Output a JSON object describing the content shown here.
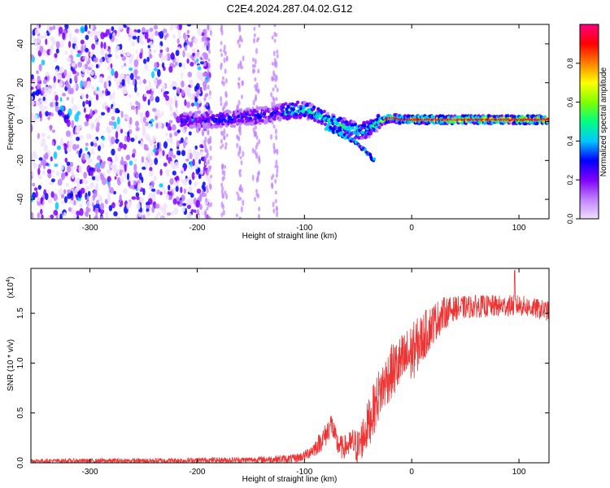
{
  "title": "C2E4.2024.287.04.02.G12",
  "chart_data": [
    {
      "type": "heatmap",
      "name": "spectrogram",
      "xlabel": "Height of straight line (km)",
      "ylabel": "Frequency (Hz)",
      "xlim": [
        -355,
        128
      ],
      "ylim": [
        -50,
        50
      ],
      "xticks": [
        -300,
        -200,
        -100,
        0,
        100
      ],
      "yticks": [
        -40,
        -20,
        0,
        20,
        40
      ],
      "colorbar": {
        "label": "Normalized spectral amplitude",
        "range": [
          0,
          1
        ],
        "ticks": [
          0.0,
          0.2,
          0.4,
          0.6,
          0.8
        ],
        "tick_labels": [
          "0.0",
          "0.2",
          "0.4",
          "0.6",
          "0.8"
        ],
        "colors": [
          "#f0e0ff",
          "#c080ff",
          "#8000ff",
          "#0000ff",
          "#00c8ff",
          "#00ff80",
          "#80ff00",
          "#ffff00",
          "#ff8000",
          "#ff0000",
          "#ff0080"
        ]
      },
      "center_frequency_track": {
        "x": [
          -215,
          -200,
          -180,
          -160,
          -140,
          -120,
          -110,
          -100,
          -90,
          -80,
          -70,
          -60,
          -50,
          -40,
          -30,
          -20,
          -10,
          0,
          20,
          60,
          100,
          128
        ],
        "y": [
          0,
          1,
          1,
          2,
          3,
          5,
          6,
          6,
          4,
          1,
          -1,
          -3,
          -5,
          -4,
          0,
          2,
          1,
          1,
          1,
          1,
          1,
          1
        ]
      },
      "noise_region_x": [
        -355,
        -200
      ],
      "noise_streaks_x": [
        -190,
        -175,
        -160,
        -145,
        -128
      ]
    },
    {
      "type": "line",
      "name": "snr",
      "xlabel": "Height of straight line (km)",
      "ylabel": "SNR (10 * v/v)",
      "scale_label": "(x10",
      "scale_exp": "4",
      "scale_close": ")",
      "xlim": [
        -355,
        128
      ],
      "ylim": [
        0,
        1.95
      ],
      "xticks": [
        -300,
        -200,
        -100,
        0,
        100
      ],
      "yticks": [
        0.0,
        0.5,
        1.0,
        1.5
      ],
      "ytick_labels": [
        "0.0",
        "0.5",
        "1.0",
        "1.5"
      ],
      "line_color": "#ee3333",
      "envelope": {
        "x": [
          -355,
          -250,
          -150,
          -110,
          -100,
          -90,
          -80,
          -75,
          -70,
          -65,
          -60,
          -55,
          -50,
          -40,
          -30,
          -20,
          -10,
          0,
          10,
          20,
          30,
          40,
          60,
          80,
          100,
          128
        ],
        "y": [
          0.02,
          0.02,
          0.03,
          0.04,
          0.07,
          0.15,
          0.28,
          0.4,
          0.2,
          0.15,
          0.17,
          0.2,
          0.15,
          0.4,
          0.7,
          0.9,
          1.0,
          1.1,
          1.25,
          1.4,
          1.5,
          1.55,
          1.57,
          1.57,
          1.58,
          1.52
        ]
      },
      "noise": {
        "x": [
          -355,
          -150,
          -100,
          -80,
          -60,
          -40,
          0,
          40,
          128
        ],
        "amp": [
          0.02,
          0.03,
          0.05,
          0.12,
          0.12,
          0.25,
          0.3,
          0.12,
          0.1
        ]
      },
      "peak": {
        "x": 96,
        "y": 1.93
      }
    }
  ]
}
